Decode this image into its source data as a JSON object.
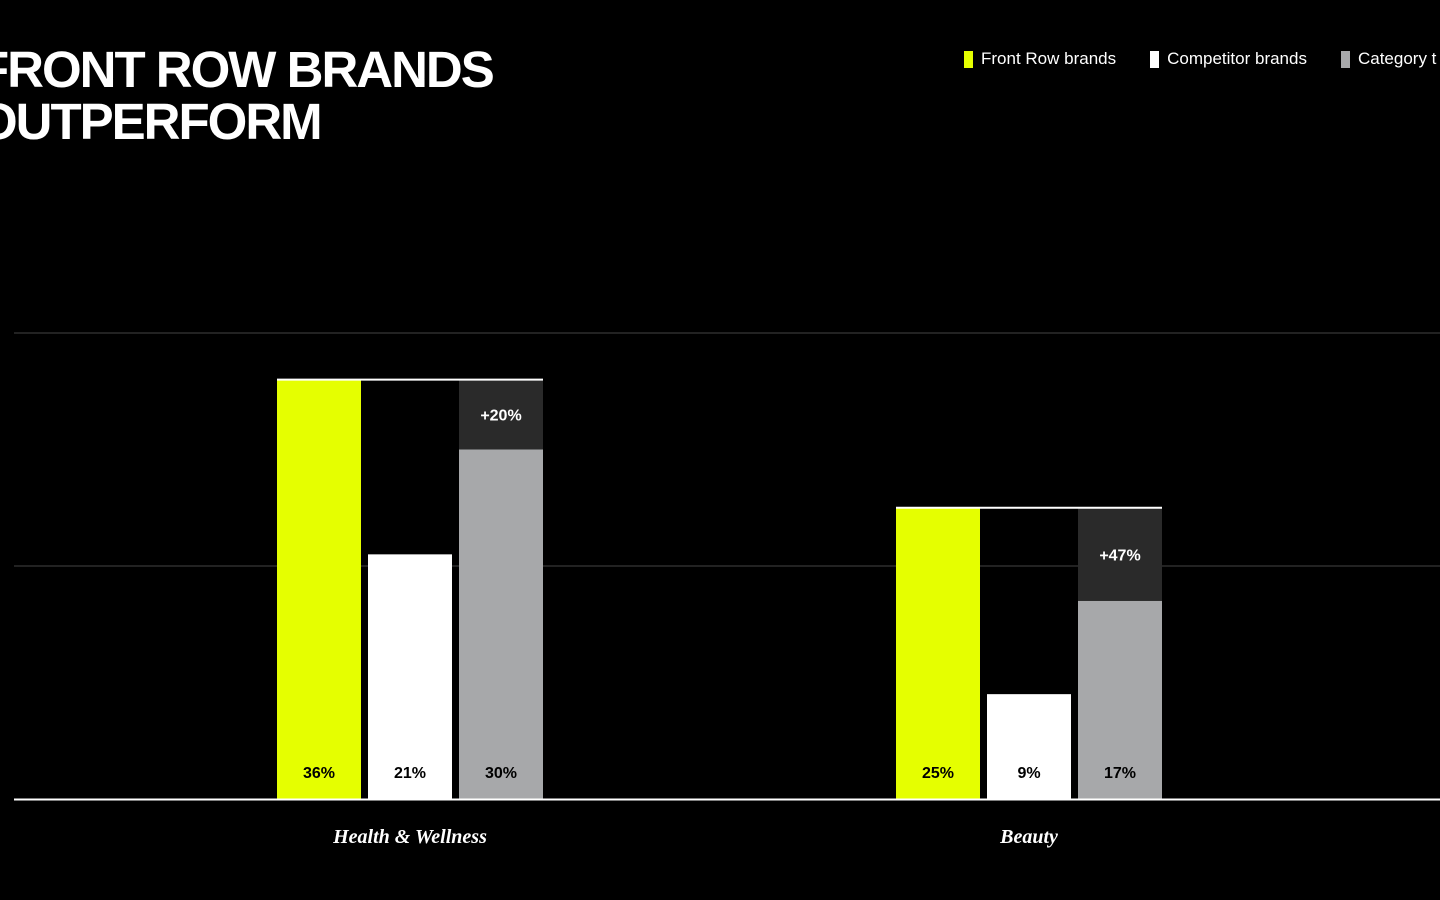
{
  "chart_data": {
    "type": "bar",
    "title_lines": [
      "FRONT ROW BRANDS",
      "OUTPERFORM"
    ],
    "categories": [
      "Health & Wellness",
      "Beauty"
    ],
    "series": [
      {
        "name": "Front Row brands",
        "values": [
          36,
          25
        ],
        "labels": [
          "36%",
          "25%"
        ],
        "color": "#E5FF00",
        "label_color": "#000000"
      },
      {
        "name": "Competitor brands",
        "values": [
          21,
          9
        ],
        "labels": [
          "21%",
          "9%"
        ],
        "color": "#FFFFFF",
        "label_color": "#000000"
      },
      {
        "name": "Category t",
        "values": [
          30,
          17
        ],
        "labels": [
          "30%",
          "17%"
        ],
        "color": "#A7A8AA",
        "label_color": "#000000"
      }
    ],
    "uplift": {
      "labels": [
        "+20%",
        "+47%"
      ],
      "color": "#2A2A2A",
      "label_color": "#FFFFFF"
    },
    "ylim": [
      0,
      40
    ],
    "gridlines": [
      20,
      40
    ],
    "grid_color": "#444444",
    "axis_color": "#FFFFFF",
    "legend_position": "top-right",
    "xlabel": "",
    "ylabel": ""
  }
}
